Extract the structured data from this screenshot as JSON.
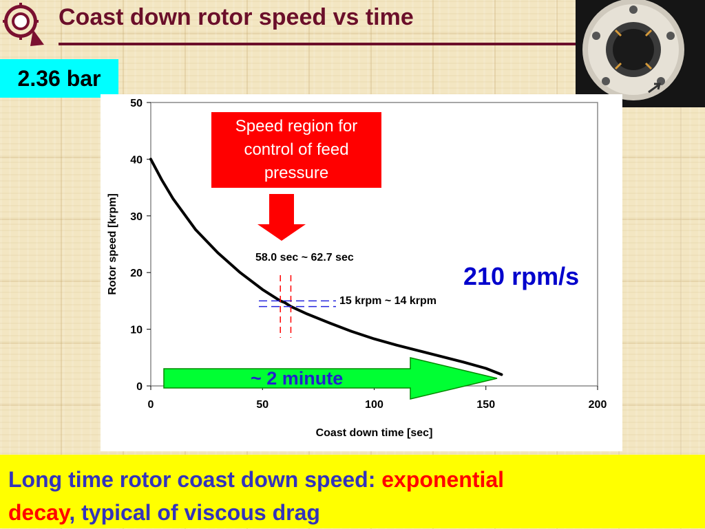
{
  "slide": {
    "title": "Coast down rotor speed vs time",
    "badge": "2.36 bar",
    "callout": "Speed region for control of feed pressure",
    "time_range": "58.0 sec ~ 62.7 sec",
    "speed_range": "15 krpm ~ 14 krpm",
    "rate": "210 rpm/s",
    "duration": "~ 2 minute",
    "summary": {
      "part1": "Long time rotor coast down speed: ",
      "highlight1": "exponential",
      "highlight2": "decay",
      "part2": ", typical of viscous drag"
    }
  },
  "colors": {
    "title": "#6b0f2a",
    "badge_bg": "#00ffff",
    "callout_bg": "#ff0000",
    "rate_text": "#0000cc",
    "duration_arrow": "#00ff33",
    "summary_bg": "#ffff00",
    "summary_text": "#3333bb",
    "summary_highlight": "#ff0000"
  },
  "icons": {
    "logo": "university-logo-icon",
    "photo": "rotor-photo",
    "callout_arrow": "down-arrow-icon",
    "duration_arrow": "right-arrow-icon"
  },
  "chart_data": {
    "type": "line",
    "title": "",
    "xlabel": "Coast down time [sec]",
    "ylabel": "Rotor speed [krpm]",
    "xlim": [
      0,
      200
    ],
    "ylim": [
      0,
      50
    ],
    "xticks": [
      0,
      50,
      100,
      150,
      200
    ],
    "yticks": [
      0,
      10,
      20,
      30,
      40,
      50
    ],
    "grid": false,
    "series": [
      {
        "x": [
          0,
          5,
          10,
          20,
          30,
          40,
          50,
          58,
          60,
          62.7,
          70,
          80,
          90,
          100,
          110,
          120,
          130,
          140,
          150,
          157
        ],
        "values": [
          40,
          36.3,
          33,
          27.6,
          23.5,
          20,
          17,
          15,
          14.7,
          14,
          12.7,
          11.1,
          9.6,
          8.3,
          7.2,
          6.2,
          5.2,
          4.2,
          3.1,
          2
        ]
      }
    ],
    "markers": {
      "time_range_sec": [
        58.0,
        62.7
      ],
      "speed_range_krpm": [
        15,
        14
      ]
    }
  }
}
